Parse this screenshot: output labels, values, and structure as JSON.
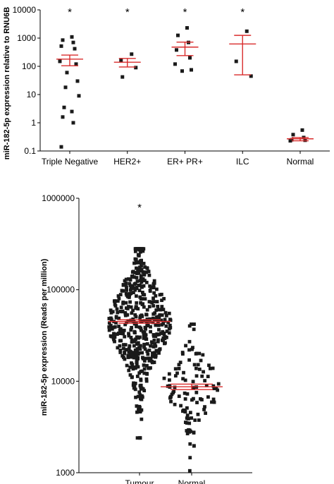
{
  "colors": {
    "mean_line": "#d92b2b",
    "points": "#1a1a1a",
    "axis": "#000000"
  },
  "chart_data": [
    {
      "type": "scatter",
      "yscale": "log",
      "ylabel": "miR-182-5p expression relative to RNU6B",
      "ylim": [
        0.1,
        10000
      ],
      "yticks": [
        {
          "v": 10000,
          "label": "10000"
        },
        {
          "v": 1000,
          "label": "1000"
        },
        {
          "v": 100,
          "label": "100"
        },
        {
          "v": 10,
          "label": "10"
        },
        {
          "v": 1,
          "label": "1"
        },
        {
          "v": 0.1,
          "label": "0.1"
        }
      ],
      "categories": [
        "Triple Negative",
        "HER2+",
        "ER+ PR+",
        "ILC",
        "Normal"
      ],
      "significance": [
        "*",
        "*",
        "*",
        "*",
        ""
      ],
      "groups": [
        {
          "points": [
            1100,
            850,
            700,
            520,
            420,
            150,
            120,
            60,
            30,
            18,
            9,
            3.5,
            2.5,
            1.6,
            1,
            0.14
          ],
          "mean": 180,
          "err": [
            105,
            250
          ]
        },
        {
          "points": [
            270,
            160,
            90,
            42
          ],
          "mean": 140,
          "err": [
            95,
            190
          ]
        },
        {
          "points": [
            2300,
            1250,
            700,
            380,
            200,
            120,
            75,
            68
          ],
          "mean": 480,
          "err": [
            240,
            720
          ]
        },
        {
          "points": [
            1750,
            150,
            45
          ],
          "mean": 620,
          "err": [
            50,
            1250
          ]
        },
        {
          "points": [
            0.55,
            0.38,
            0.3,
            0.25,
            0.23,
            0.24
          ],
          "mean": 0.27,
          "err": [
            0.23,
            0.3
          ]
        }
      ]
    },
    {
      "type": "scatter",
      "yscale": "log",
      "ylabel": "miR-182-5p expression (Reads per million)",
      "ylim": [
        1000,
        1000000
      ],
      "yticks": [
        {
          "v": 1000000,
          "label": "1000000"
        },
        {
          "v": 100000,
          "label": "100000"
        },
        {
          "v": 10000,
          "label": "10000"
        },
        {
          "v": 1000,
          "label": "1000"
        }
      ],
      "categories": [
        "Tumour",
        "Normal"
      ],
      "significance": [
        "*",
        ""
      ],
      "groups": [
        {
          "n": 520,
          "range": [
            2400,
            280000
          ],
          "mean": 45000,
          "err": [
            43000,
            47000
          ]
        },
        {
          "n": 110,
          "range": [
            1050,
            42000
          ],
          "mean": 8700,
          "err": [
            8100,
            9300
          ]
        }
      ]
    }
  ]
}
